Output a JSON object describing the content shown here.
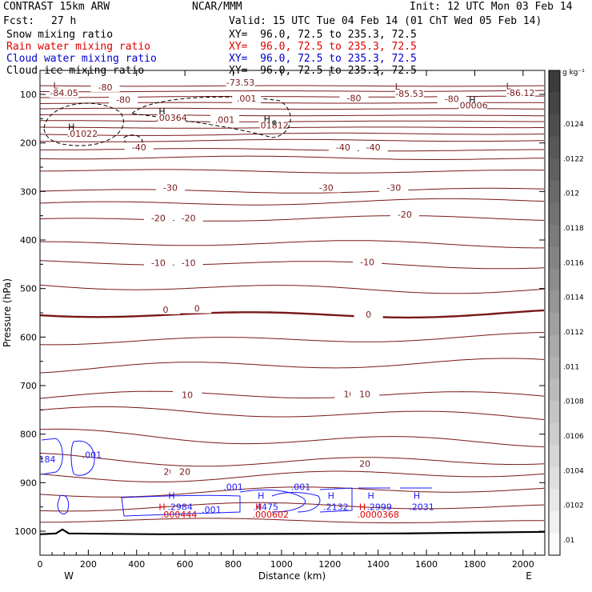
{
  "header": {
    "model": "CONTRAST 15km ARW",
    "fcst_label": "Fcst:",
    "fcst_value": "27 h",
    "center": "NCAR/MMM",
    "init": "Init: 12 UTC Mon 03 Feb 14",
    "valid": "Valid: 15 UTC Tue 04 Feb 14 (01 ChT Wed 05 Feb 14)"
  },
  "fields": [
    {
      "name": "Snow mixing ratio",
      "xy": "XY=  96.0, 72.5 to 235.3, 72.5",
      "color": "#000000"
    },
    {
      "name": "Rain water mixing ratio",
      "xy": "XY=  96.0, 72.5 to 235.3, 72.5",
      "color": "#dd0000"
    },
    {
      "name": "Cloud water mixing ratio",
      "xy": "XY=  96.0, 72.5 to 235.3, 72.5",
      "color": "#0000cc"
    },
    {
      "name": "Cloud ice mixing ratio",
      "xy": "XY=  96.0, 72.5 to 235.3, 72.5",
      "color": "#000000"
    }
  ],
  "colors": {
    "temperature": "#7a1818",
    "cloud_water": "#1a1aff",
    "rain": "#dd0000",
    "terrain": "#000000"
  },
  "chart_data": {
    "type": "line",
    "xlabel": "Distance (km)",
    "ylabel": "Pressure (hPa)",
    "xlim": [
      0,
      2090
    ],
    "ylim": [
      1050,
      50
    ],
    "xticks": [
      0,
      200,
      400,
      600,
      800,
      1000,
      1200,
      1400,
      1600,
      1800,
      2000
    ],
    "yticks": [
      100,
      200,
      300,
      400,
      500,
      600,
      700,
      800,
      900,
      1000
    ],
    "x_end_labels": {
      "left": "W",
      "right": "E"
    },
    "colorbar": {
      "unit": "g kg⁻¹",
      "ticks": [
        ".0124",
        ".0122",
        ".012",
        ".0118",
        ".0116",
        ".0114",
        ".0112",
        ".011",
        ".0108",
        ".0106",
        ".0104",
        ".0102",
        ".01"
      ]
    },
    "isotherm_labels": [
      {
        "text": "-80",
        "x": 270,
        "p": 90
      },
      {
        "text": "-73.53",
        "x": 830,
        "p": 80
      },
      {
        "text": "-84.05",
        "x": 100,
        "p": 102
      },
      {
        "text": "-85.53",
        "x": 1530,
        "p": 103
      },
      {
        "text": "-86.12",
        "x": 1990,
        "p": 102
      },
      {
        "text": "-80",
        "x": 345,
        "p": 116
      },
      {
        "text": "-80",
        "x": 1300,
        "p": 112
      },
      {
        "text": "-80",
        "x": 1705,
        "p": 114
      },
      {
        "text": ".00006",
        "x": 1790,
        "p": 127
      },
      {
        "text": ".001",
        "x": 855,
        "p": 113
      },
      {
        "text": ".00364",
        "x": 545,
        "p": 153
      },
      {
        "text": ".001",
        "x": 765,
        "p": 157
      },
      {
        "text": ".01812",
        "x": 965,
        "p": 168
      },
      {
        "text": ".01022",
        "x": 175,
        "p": 186
      },
      {
        "text": "-40",
        "x": 410,
        "p": 214
      },
      {
        "text": "-40",
        "x": 1255,
        "p": 214
      },
      {
        "text": "-40",
        "x": 1380,
        "p": 214
      },
      {
        "text": "-30",
        "x": 540,
        "p": 297
      },
      {
        "text": "-30",
        "x": 1185,
        "p": 297
      },
      {
        "text": "-30",
        "x": 1465,
        "p": 297
      },
      {
        "text": "-20",
        "x": 490,
        "p": 360
      },
      {
        "text": "-20",
        "x": 615,
        "p": 360
      },
      {
        "text": "-20",
        "x": 1510,
        "p": 352
      },
      {
        "text": "-10",
        "x": 490,
        "p": 452
      },
      {
        "text": "-10",
        "x": 615,
        "p": 452
      },
      {
        "text": "-10",
        "x": 1355,
        "p": 450
      },
      {
        "text": "0",
        "x": 520,
        "p": 548
      },
      {
        "text": "0",
        "x": 650,
        "p": 546
      },
      {
        "text": "0",
        "x": 1360,
        "p": 558
      },
      {
        "text": "10",
        "x": 610,
        "p": 724
      },
      {
        "text": "10",
        "x": 1280,
        "p": 722
      },
      {
        "text": "10",
        "x": 1345,
        "p": 722
      },
      {
        "text": "20",
        "x": 535,
        "p": 882
      },
      {
        "text": "20",
        "x": 600,
        "p": 882
      },
      {
        "text": "20",
        "x": 1345,
        "p": 866
      }
    ],
    "extrema": [
      {
        "text": "L",
        "x": 65,
        "p": 88,
        "color": "#7a1818"
      },
      {
        "text": "L",
        "x": 1480,
        "p": 90,
        "color": "#7a1818"
      },
      {
        "text": "L",
        "x": 1940,
        "p": 89,
        "color": "#7a1818"
      },
      {
        "text": "H",
        "x": 1790,
        "p": 117,
        "color": "#000000"
      },
      {
        "text": "H",
        "x": 505,
        "p": 141,
        "color": "#000000"
      },
      {
        "text": "H",
        "x": 940,
        "p": 157,
        "color": "#000000"
      },
      {
        "text": "H",
        "x": 130,
        "p": 173,
        "color": "#000000"
      },
      {
        "text": "H",
        "x": 545,
        "p": 933,
        "color": "#1a1aff"
      },
      {
        "text": "H",
        "x": 915,
        "p": 933,
        "color": "#1a1aff"
      },
      {
        "text": "H",
        "x": 1205,
        "p": 933,
        "color": "#1a1aff"
      },
      {
        "text": "H",
        "x": 1370,
        "p": 933,
        "color": "#1a1aff"
      },
      {
        "text": "H",
        "x": 1560,
        "p": 933,
        "color": "#1a1aff"
      }
    ],
    "cloud_water_labels": [
      {
        "text": "184",
        "x": 30,
        "p": 858
      },
      {
        "text": ".001",
        "x": 215,
        "p": 849
      },
      {
        "text": ".001",
        "x": 800,
        "p": 915
      },
      {
        "text": ".001",
        "x": 1080,
        "p": 915
      },
      {
        "text": ".2984",
        "x": 580,
        "p": 956
      },
      {
        "text": ".001",
        "x": 710,
        "p": 962
      },
      {
        "text": ".4475",
        "x": 935,
        "p": 956
      },
      {
        "text": ".2132",
        "x": 1225,
        "p": 956
      },
      {
        "text": ".2999",
        "x": 1405,
        "p": 956
      },
      {
        "text": ".2031",
        "x": 1580,
        "p": 956
      }
    ],
    "rain_labels": [
      {
        "text": "H",
        "x": 505,
        "p": 956
      },
      {
        "text": ".000444",
        "x": 575,
        "p": 972
      },
      {
        "text": "H",
        "x": 905,
        "p": 956
      },
      {
        "text": ".000602",
        "x": 955,
        "p": 972
      },
      {
        "text": "H",
        "x": 1335,
        "p": 956
      },
      {
        "text": ".0000368",
        "x": 1400,
        "p": 972
      }
    ],
    "isotherms": [
      {
        "level": "-80",
        "p": 82,
        "amp": 1
      },
      {
        "level": "-80",
        "p": 93,
        "amp": 1
      },
      {
        "level": "-80",
        "p": 105,
        "amp": 1
      },
      {
        "level": "-80",
        "p": 118,
        "amp": 1
      },
      {
        "level": "-80",
        "p": 130,
        "amp": 1
      },
      {
        "level": "-70",
        "p": 143,
        "amp": 1
      },
      {
        "level": "-70",
        "p": 155,
        "amp": 1
      },
      {
        "level": "-60",
        "p": 168,
        "amp": 1
      },
      {
        "level": "-60",
        "p": 182,
        "amp": 2
      },
      {
        "level": "-50",
        "p": 196,
        "amp": 2
      },
      {
        "level": "-50",
        "p": 232,
        "amp": 3
      },
      {
        "level": "-40",
        "p": 214,
        "amp": 2
      },
      {
        "level": "-30",
        "p": 257,
        "amp": 3
      },
      {
        "level": "-30",
        "p": 297,
        "amp": 4
      },
      {
        "level": "-20",
        "p": 322,
        "amp": 5
      },
      {
        "level": "-20",
        "p": 358,
        "amp": 5
      },
      {
        "level": "-10",
        "p": 410,
        "amp": 6
      },
      {
        "level": "-10",
        "p": 450,
        "amp": 6
      },
      {
        "level": "0",
        "p": 497,
        "amp": 8
      },
      {
        "level": "0",
        "p": 550,
        "amp": 7,
        "bold": true
      },
      {
        "level": "0",
        "p": 603,
        "amp": 8
      },
      {
        "level": "10",
        "p": 660,
        "amp": 10
      },
      {
        "level": "10",
        "p": 724,
        "amp": 9
      },
      {
        "level": "10",
        "p": 760,
        "amp": 10
      },
      {
        "level": "20",
        "p": 808,
        "amp": 12
      },
      {
        "level": "20",
        "p": 850,
        "amp": 11
      },
      {
        "level": "20",
        "p": 882,
        "amp": 10
      },
      {
        "level": "20",
        "p": 918,
        "amp": 8
      },
      {
        "level": "20",
        "p": 952,
        "amp": 7
      },
      {
        "level": "30",
        "p": 980,
        "amp": 4
      }
    ],
    "terrain_p": 1003
  }
}
